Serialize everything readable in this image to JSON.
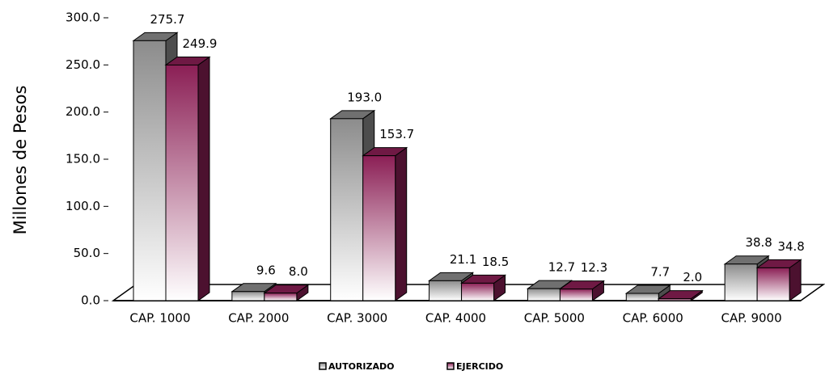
{
  "chart_data": {
    "type": "bar3d",
    "ylabel": "Millones de Pesos",
    "categories": [
      "CAP. 1000",
      "CAP. 2000",
      "CAP. 3000",
      "CAP. 4000",
      "CAP. 5000",
      "CAP. 6000",
      "CAP. 9000"
    ],
    "series": [
      {
        "name": "AUTORIZADO",
        "color": "#8c8c8c",
        "values": [
          275.7,
          9.6,
          193.0,
          21.1,
          12.7,
          7.7,
          38.8
        ],
        "value_labels": [
          "275.7",
          "9.6",
          "193.0",
          "21.1",
          "12.7",
          "7.7",
          "38.8"
        ]
      },
      {
        "name": "EJERCIDO",
        "color": "#8b1f55",
        "values": [
          249.9,
          8.0,
          153.7,
          18.5,
          12.3,
          2.0,
          34.8
        ],
        "value_labels": [
          "249.9",
          "8.0",
          "153.7",
          "18.5",
          "12.3",
          "2.0",
          "34.8"
        ]
      }
    ],
    "ylim": [
      0,
      300
    ],
    "yticks": [
      {
        "value": 0,
        "label": "0.0"
      },
      {
        "value": 50,
        "label": "50.0"
      },
      {
        "value": 100,
        "label": "100.0"
      },
      {
        "value": 150,
        "label": "150.0"
      },
      {
        "value": 200,
        "label": "200.0"
      },
      {
        "value": 250,
        "label": "250.0"
      },
      {
        "value": 300,
        "label": "300.0"
      }
    ],
    "legend": "bottom"
  }
}
